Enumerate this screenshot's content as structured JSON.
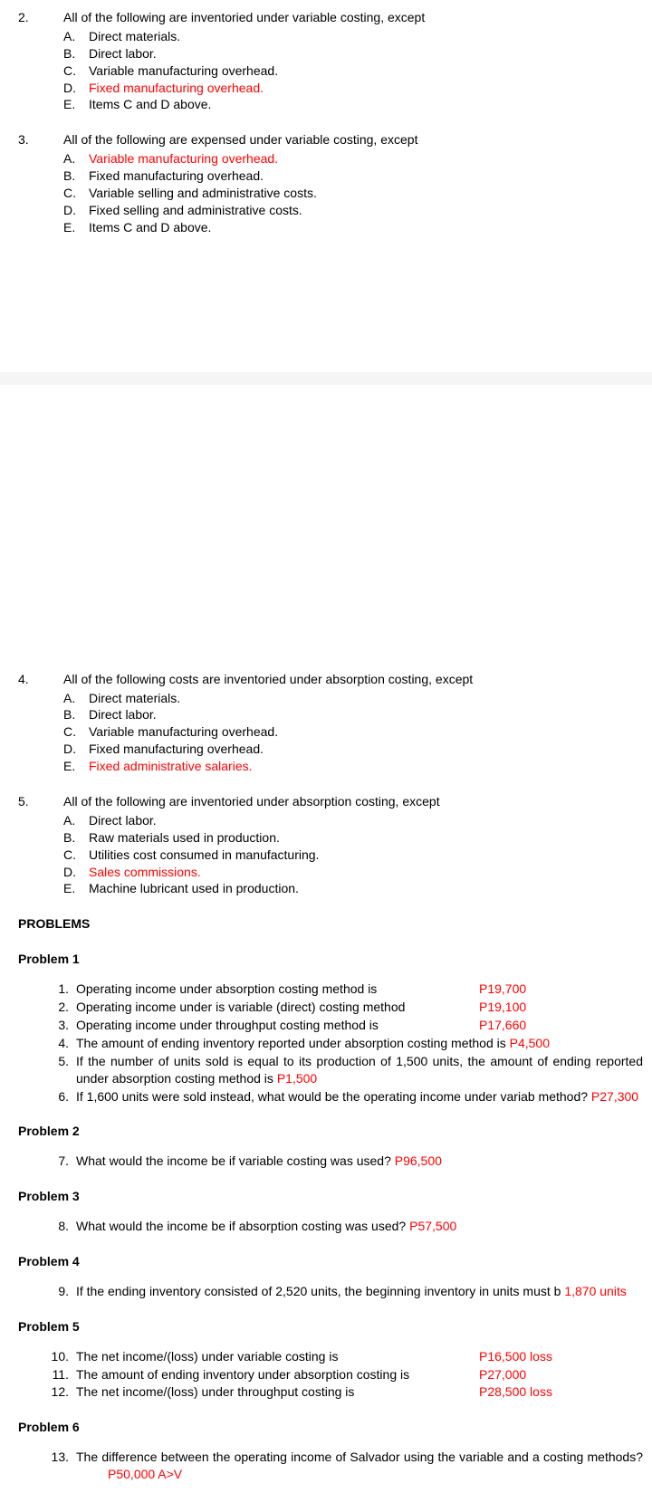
{
  "q2": {
    "num": "2.",
    "stem": "All of the following are inventoried under variable costing, except",
    "options": [
      {
        "letter": "A.",
        "text": "Direct materials.",
        "red": false
      },
      {
        "letter": "B.",
        "text": "Direct labor.",
        "red": false
      },
      {
        "letter": "C.",
        "text": "Variable manufacturing overhead.",
        "red": false
      },
      {
        "letter": "D.",
        "text": "Fixed manufacturing overhead.",
        "red": true
      },
      {
        "letter": "E.",
        "text": "Items C and D above.",
        "red": false
      }
    ]
  },
  "q3": {
    "num": "3.",
    "stem": "All of the following are expensed under variable costing, except",
    "options": [
      {
        "letter": "A.",
        "text": "Variable manufacturing overhead.",
        "red": true
      },
      {
        "letter": "B.",
        "text": "Fixed manufacturing overhead.",
        "red": false
      },
      {
        "letter": "C.",
        "text": "Variable selling and administrative costs.",
        "red": false
      },
      {
        "letter": "D.",
        "text": "Fixed selling and administrative costs.",
        "red": false
      },
      {
        "letter": "E.",
        "text": "Items C and D above.",
        "red": false
      }
    ]
  },
  "q4": {
    "num": "4.",
    "stem": "All of the following costs are inventoried under absorption costing, except",
    "options": [
      {
        "letter": "A.",
        "text": "Direct materials.",
        "red": false
      },
      {
        "letter": "B.",
        "text": "Direct labor.",
        "red": false
      },
      {
        "letter": "C.",
        "text": "Variable manufacturing overhead.",
        "red": false
      },
      {
        "letter": "D.",
        "text": "Fixed manufacturing overhead.",
        "red": false
      },
      {
        "letter": "E.",
        "text": "Fixed administrative salaries.",
        "red": true
      }
    ]
  },
  "q5": {
    "num": "5.",
    "stem": "All of the following are inventoried under absorption costing, except",
    "options": [
      {
        "letter": "A.",
        "text": "Direct labor.",
        "red": false
      },
      {
        "letter": "B.",
        "text": "Raw materials used in production.",
        "red": false
      },
      {
        "letter": "C.",
        "text": "Utilities cost consumed in manufacturing.",
        "red": false
      },
      {
        "letter": "D.",
        "text": "Sales commissions.",
        "red": true
      },
      {
        "letter": "E.",
        "text": "Machine lubricant used in production.",
        "red": false
      }
    ]
  },
  "problems_label": "PROBLEMS",
  "p1": {
    "heading": "Problem 1",
    "items": [
      {
        "num": "1.",
        "left": "Operating income under absorption costing method is",
        "right": "P19,700"
      },
      {
        "num": "2.",
        "left": "Operating income under is variable (direct) costing method",
        "right": "P19,100"
      },
      {
        "num": "3.",
        "left": "Operating income under throughput costing method is",
        "right": "P17,660"
      },
      {
        "num": "4.",
        "text_pre": "The amount of ending inventory reported under absorption costing method is ",
        "ans": "P4,500"
      },
      {
        "num": "5.",
        "text_pre": "If the number of units sold is equal to its production of 1,500 units, the amount of ending reported under absorption costing method is ",
        "ans": "P1,500"
      },
      {
        "num": "6.",
        "text_pre": "If 1,600 units were sold instead, what would be the operating income under variab method? ",
        "ans": "P27,300"
      }
    ]
  },
  "p2": {
    "heading": "Problem 2",
    "num": "7.",
    "text_pre": "What would the income be if variable costing was used? ",
    "ans": "P96,500"
  },
  "p3": {
    "heading": "Problem 3",
    "num": "8.",
    "text_pre": "What would the income be if absorption costing was used? ",
    "ans": "P57,500"
  },
  "p4": {
    "heading": "Problem 4",
    "num": "9.",
    "text_pre": "If the ending inventory consisted of 2,520 units, the beginning inventory in units must b ",
    "ans": "1,870 units"
  },
  "p5": {
    "heading": "Problem 5",
    "items": [
      {
        "num": "10.",
        "left": "The net income/(loss) under variable costing is",
        "right": "P16,500 loss"
      },
      {
        "num": "11.",
        "left": "The amount of ending inventory under absorption costing is",
        "right": "P27,000"
      },
      {
        "num": "12.",
        "left": "The net income/(loss) under throughput costing is",
        "right": "P28,500 loss"
      }
    ]
  },
  "p6": {
    "heading": "Problem 6",
    "num": "13.",
    "text_pre": "The difference between the operating income of Salvador using the variable and a costing methods?",
    "ans": "P50,000 A>V"
  }
}
